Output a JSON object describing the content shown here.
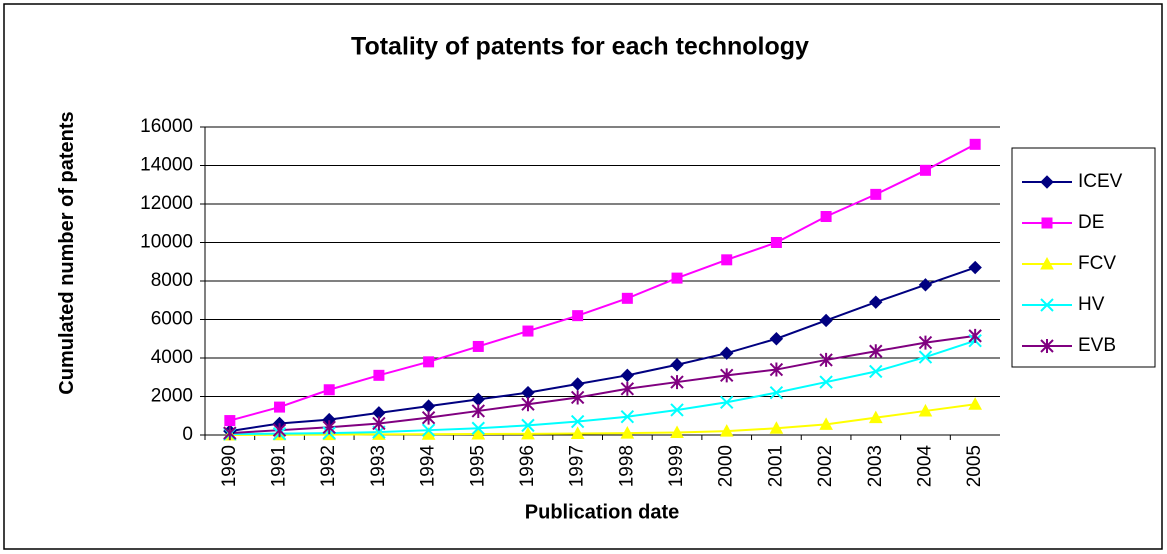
{
  "chart_data": {
    "type": "line",
    "title": "Totality of patents for each technology",
    "x_label": "Publication date",
    "y_label": "Cumulated number of patents",
    "categories": [
      "1990",
      "1991",
      "1992",
      "1993",
      "1994",
      "1995",
      "1996",
      "1997",
      "1998",
      "1999",
      "2000",
      "2001",
      "2002",
      "2003",
      "2004",
      "2005"
    ],
    "series": [
      {
        "name": "ICEV",
        "color": "#000080",
        "marker": "diamond",
        "values": [
          200,
          600,
          800,
          1150,
          1500,
          1850,
          2200,
          2650,
          3100,
          3650,
          4250,
          5000,
          5950,
          6900,
          7800,
          8700
        ]
      },
      {
        "name": "DE",
        "color": "#ff00ff",
        "marker": "square",
        "values": [
          750,
          1450,
          2350,
          3100,
          3800,
          4600,
          5400,
          6200,
          7100,
          8150,
          9100,
          10000,
          11350,
          12500,
          13750,
          15100
        ]
      },
      {
        "name": "FCV",
        "color": "#ffff00",
        "marker": "triangle",
        "values": [
          0,
          10,
          20,
          30,
          40,
          50,
          60,
          80,
          100,
          130,
          200,
          350,
          550,
          900,
          1250,
          1600
        ]
      },
      {
        "name": "HV",
        "color": "#00ffff",
        "marker": "x",
        "values": [
          50,
          70,
          100,
          150,
          250,
          350,
          500,
          700,
          950,
          1300,
          1700,
          2200,
          2750,
          3300,
          4050,
          4900
        ]
      },
      {
        "name": "EVB",
        "color": "#800080",
        "marker": "star",
        "values": [
          100,
          250,
          400,
          600,
          900,
          1250,
          1600,
          1950,
          2400,
          2750,
          3100,
          3400,
          3900,
          4350,
          4800,
          5150
        ]
      }
    ],
    "ylim": [
      0,
      16000
    ],
    "yticks": [
      0,
      2000,
      4000,
      6000,
      8000,
      10000,
      12000,
      14000,
      16000
    ],
    "grid": true,
    "legend": "right"
  }
}
